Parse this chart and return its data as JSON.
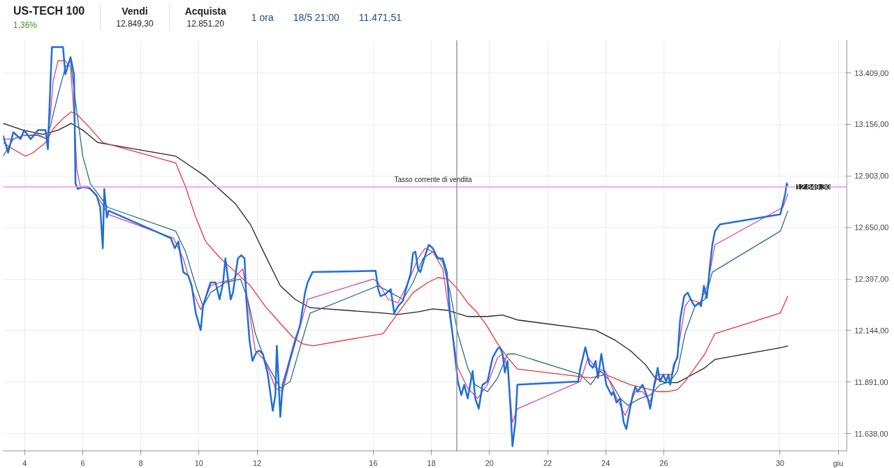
{
  "chart_data": {
    "type": "line",
    "title": "US-TECH 100",
    "subtitle": "1,36%",
    "annotations": [
      "Vendi",
      "12.849,30",
      "Acquista",
      "12.851,20",
      "1 ora",
      "18/5 21:00",
      "11.471,51",
      {
        "text": "12.849,30",
        "x": 30.27,
        "y": 12849.3
      }
    ],
    "xlim": [
      3.26,
      32.3
    ],
    "ylim": [
      11553,
      13570
    ],
    "xticks": [
      4,
      6,
      8,
      10,
      12,
      16,
      18,
      20,
      22,
      24,
      26,
      30,
      {
        "value": 32,
        "label": "giu"
      }
    ],
    "yticks": [
      {
        "value": 11638,
        "label": "11.638,00"
      },
      {
        "value": 11891,
        "label": "11.891,00"
      },
      {
        "value": 12144,
        "label": "12.144,00"
      },
      {
        "value": 12397,
        "label": "12.397,00"
      },
      {
        "value": 12650,
        "label": "12.650,00"
      },
      {
        "value": 12903,
        "label": "12.903,00"
      },
      {
        "value": 13156,
        "label": "13.156,00"
      },
      {
        "value": 13409,
        "label": "13.409,00"
      }
    ],
    "grid": true,
    "marker": "none",
    "line_style": "solid",
    "ref_lines": [
      {
        "axis": "y",
        "value": 12849.3,
        "label": "Tasso corrente di vendita",
        "color": "#f08cf0"
      },
      {
        "axis": "x",
        "value": 18.875,
        "color": "#999999"
      }
    ],
    "series": [
      {
        "color": "#222222",
        "x": [
          3.26,
          3.95,
          4.63,
          5.15,
          5.61,
          6.0,
          6.52,
          9.2,
          9.72,
          10.23,
          10.74,
          11.26,
          11.77,
          12.28,
          12.8,
          13.31,
          13.83,
          16.34,
          16.85,
          17.54,
          18.05,
          18.57,
          19.25,
          19.93,
          20.45,
          20.96,
          23.65,
          24.33,
          24.85,
          25.36,
          25.7,
          26.04,
          26.47,
          26.9,
          27.41,
          27.76,
          30.1,
          30.27
        ],
        "values": [
          13161,
          13128,
          13107,
          13128,
          13161,
          13128,
          13067,
          13000,
          12950,
          12900,
          12833,
          12766,
          12665,
          12514,
          12364,
          12297,
          12256,
          12230,
          12223,
          12236,
          12250,
          12243,
          12213,
          12213,
          12220,
          12196,
          12146,
          12096,
          12045,
          11978,
          11911,
          11888,
          11888,
          11921,
          11961,
          12002,
          12062,
          12069
        ]
      },
      {
        "color": "#e83535",
        "x": [
          3.26,
          3.61,
          4.03,
          4.29,
          4.72,
          4.98,
          5.32,
          5.61,
          5.83,
          6.17,
          6.69,
          9.2,
          9.54,
          9.89,
          10.23,
          10.74,
          11.26,
          11.77,
          12.28,
          12.8,
          13.23,
          13.57,
          13.91,
          16.34,
          16.85,
          17.37,
          17.88,
          18.22,
          18.57,
          18.91,
          19.25,
          19.59,
          19.93,
          20.28,
          20.62,
          20.96,
          23.48,
          23.99,
          24.33,
          24.85,
          25.36,
          25.79,
          26.13,
          26.47,
          26.73,
          27.07,
          27.41,
          27.76,
          30.01,
          30.27
        ],
        "values": [
          13067,
          13034,
          13000,
          13017,
          13067,
          13134,
          13185,
          13218,
          13201,
          13151,
          13067,
          12967,
          12849,
          12699,
          12581,
          12498,
          12431,
          12364,
          12263,
          12179,
          12112,
          12079,
          12069,
          12129,
          12230,
          12330,
          12380,
          12404,
          12397,
          12347,
          12280,
          12230,
          12163,
          12079,
          12012,
          11955,
          11911,
          11928,
          11908,
          11878,
          11861,
          11844,
          11844,
          11854,
          11894,
          11961,
          12029,
          12129,
          12230,
          12313
        ]
      },
      {
        "color": "#2e6b8a",
        "x": [
          3.26,
          3.61,
          3.95,
          4.46,
          4.77,
          4.89,
          5.15,
          5.4,
          5.58,
          5.75,
          6.0,
          6.26,
          6.52,
          6.86,
          9.2,
          9.54,
          9.89,
          10.14,
          10.4,
          10.91,
          11.43,
          11.68,
          11.94,
          12.28,
          12.8,
          13.14,
          13.48,
          13.83,
          16.17,
          16.6,
          17.02,
          17.37,
          17.71,
          18.05,
          18.39,
          18.65,
          18.91,
          19.25,
          19.51,
          19.93,
          20.28,
          20.62,
          20.88,
          23.13,
          23.48,
          23.82,
          24.16,
          24.5,
          24.76,
          25.19,
          25.53,
          25.87,
          26.22,
          26.47,
          26.73,
          27.07,
          27.41,
          27.67,
          30.01,
          30.27
        ],
        "values": [
          13000,
          13084,
          13101,
          13101,
          13084,
          13151,
          13302,
          13436,
          13469,
          13268,
          13000,
          12866,
          12816,
          12749,
          12632,
          12531,
          12364,
          12263,
          12330,
          12380,
          12397,
          12297,
          12129,
          11995,
          11861,
          11894,
          12062,
          12230,
          12364,
          12330,
          12297,
          12380,
          12498,
          12531,
          12481,
          12330,
          12129,
          11961,
          11878,
          11844,
          11911,
          12029,
          12029,
          11928,
          11878,
          11945,
          11894,
          11811,
          11777,
          11811,
          11827,
          11878,
          11894,
          11945,
          12129,
          12263,
          12297,
          12431,
          12632,
          12732
        ]
      },
      {
        "color": "#e0409a",
        "x": [
          3.26,
          3.61,
          3.95,
          4.46,
          4.77,
          4.89,
          4.98,
          5.15,
          5.4,
          5.58,
          5.7,
          5.8,
          5.92,
          6.26,
          6.6,
          6.86,
          9.12,
          9.46,
          9.8,
          10.06,
          10.4,
          10.74,
          11.17,
          11.51,
          11.74,
          11.94,
          12.28,
          12.63,
          12.88,
          13.14,
          13.48,
          13.74,
          16.0,
          16.17,
          16.51,
          16.85,
          17.2,
          17.54,
          17.79,
          18.05,
          18.39,
          18.65,
          18.91,
          19.25,
          19.59,
          19.93,
          20.28,
          20.45,
          20.62,
          20.79,
          20.96,
          23.13,
          23.39,
          23.65,
          23.99,
          24.33,
          24.67,
          25.02,
          25.27,
          25.53,
          25.79,
          26.04,
          26.3,
          26.47,
          26.73,
          26.9,
          27.24,
          27.5,
          27.76,
          30.1,
          30.27
        ],
        "values": [
          13084,
          13084,
          13101,
          13107,
          13084,
          13201,
          13369,
          13469,
          13469,
          13436,
          13201,
          12933,
          12849,
          12839,
          12782,
          12715,
          12598,
          12498,
          12330,
          12246,
          12364,
          12380,
          12397,
          12447,
          12230,
          12045,
          11995,
          11861,
          11844,
          11995,
          12163,
          12297,
          12397,
          12380,
          12297,
          12280,
          12380,
          12498,
          12548,
          12531,
          12447,
          12196,
          11961,
          11861,
          11811,
          11878,
          12012,
          12029,
          11961,
          11693,
          11760,
          11894,
          12012,
          11961,
          11945,
          11827,
          11727,
          11844,
          11844,
          11794,
          11928,
          11928,
          11928,
          12029,
          12263,
          12297,
          12280,
          12364,
          12565,
          12749,
          12816
        ]
      },
      {
        "color": "#1f6fd8",
        "x": [
          3.26,
          3.43,
          3.61,
          3.86,
          3.98,
          4.21,
          4.46,
          4.72,
          4.8,
          4.89,
          4.94,
          5.15,
          5.32,
          5.4,
          5.58,
          5.7,
          5.75,
          5.83,
          6.0,
          6.17,
          6.31,
          6.48,
          6.6,
          6.69,
          6.74,
          6.83,
          6.89,
          9.03,
          9.17,
          9.29,
          9.46,
          9.63,
          9.75,
          9.89,
          10.06,
          10.14,
          10.32,
          10.4,
          10.57,
          10.71,
          10.83,
          10.91,
          11.09,
          11.17,
          11.34,
          11.46,
          11.57,
          11.63,
          11.74,
          11.84,
          11.98,
          12.08,
          12.2,
          12.37,
          12.54,
          12.63,
          12.68,
          12.8,
          12.88,
          13.05,
          13.31,
          13.48,
          13.65,
          13.74,
          13.91,
          16.08,
          16.17,
          16.25,
          16.42,
          16.6,
          16.72,
          16.85,
          17.02,
          17.16,
          17.28,
          17.37,
          17.45,
          17.54,
          17.62,
          17.79,
          17.91,
          18.05,
          18.22,
          18.39,
          18.53,
          18.65,
          18.74,
          18.82,
          18.91,
          19.03,
          19.13,
          19.25,
          19.42,
          19.51,
          19.63,
          19.76,
          19.93,
          20.11,
          20.28,
          20.36,
          20.45,
          20.53,
          20.62,
          20.71,
          20.79,
          20.89,
          20.96,
          23.05,
          23.13,
          23.3,
          23.44,
          23.56,
          23.65,
          23.73,
          23.85,
          24.02,
          24.2,
          24.26,
          24.37,
          24.5,
          24.62,
          24.71,
          24.79,
          24.93,
          25.02,
          25.1,
          25.27,
          25.45,
          25.53,
          25.67,
          25.79,
          25.87,
          25.98,
          26.08,
          26.16,
          26.22,
          26.35,
          26.47,
          26.56,
          26.7,
          26.82,
          26.99,
          27.07,
          27.21,
          27.28,
          27.38,
          27.48,
          27.59,
          27.67,
          27.76,
          27.93,
          30.01,
          30.18,
          30.23,
          30.27
        ],
        "values": [
          13101,
          13017,
          13118,
          13084,
          13128,
          13084,
          13128,
          13128,
          13034,
          13369,
          13536,
          13536,
          13536,
          13402,
          13486,
          13402,
          12866,
          12839,
          12849,
          12849,
          12833,
          12806,
          12749,
          12548,
          12839,
          12699,
          12732,
          12598,
          12548,
          12581,
          12431,
          12414,
          12364,
          12230,
          12146,
          12263,
          12347,
          12380,
          12380,
          12297,
          12380,
          12498,
          12297,
          12330,
          12498,
          12514,
          12498,
          12297,
          12096,
          11995,
          12039,
          12045,
          12029,
          11928,
          11750,
          11827,
          12069,
          11720,
          11878,
          11961,
          12096,
          12169,
          12330,
          12380,
          12431,
          12437,
          12347,
          12313,
          12323,
          12347,
          12230,
          12263,
          12290,
          12364,
          12421,
          12524,
          12531,
          12447,
          12431,
          12514,
          12565,
          12548,
          12498,
          12498,
          12431,
          12213,
          12112,
          12012,
          11894,
          11827,
          11878,
          11811,
          11945,
          11811,
          11760,
          11878,
          11894,
          12012,
          12055,
          12062,
          12029,
          11938,
          11995,
          11794,
          11576,
          11693,
          11878,
          11894,
          11961,
          12062,
          11978,
          11961,
          11995,
          11911,
          12029,
          11878,
          11827,
          11844,
          11791,
          11811,
          11693,
          11660,
          11727,
          11827,
          11868,
          11844,
          11878,
          11811,
          11760,
          11878,
          11961,
          11894,
          11928,
          11894,
          11928,
          11878,
          11978,
          12012,
          12196,
          12313,
          12330,
          12280,
          12263,
          12280,
          12263,
          12364,
          12303,
          12464,
          12565,
          12632,
          12665,
          12715,
          12816,
          12866,
          12856
        ]
      }
    ]
  }
}
